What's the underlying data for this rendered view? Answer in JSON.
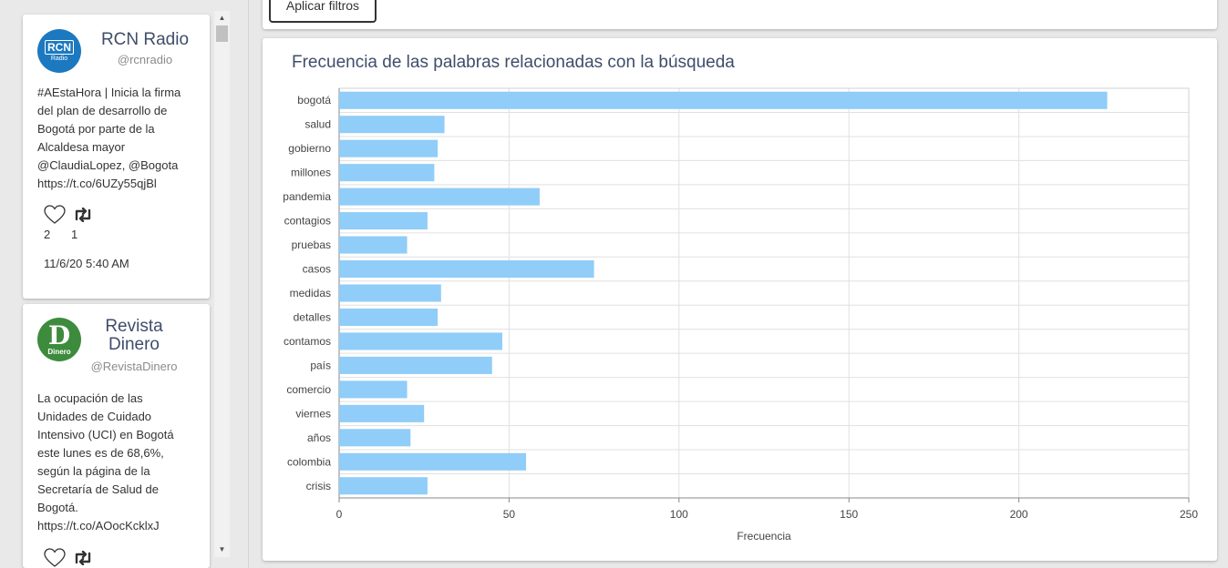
{
  "tweets": [
    {
      "name": "RCN Radio",
      "handle": "@rcnradio",
      "avatar_text": "RCN",
      "avatar_sub": "Radio",
      "text_lines": [
        "#AEstaHora | Inicia la firma",
        "del plan de desarrollo de",
        "Bogotá por parte de la",
        "Alcaldesa mayor",
        "@ClaudiaLopez, @Bogota",
        "https://t.co/6UZy55qjBl"
      ],
      "likes": "2",
      "retweets": "1",
      "date": "11/6/20 5:40 AM",
      "avatar_color": "#1c79c0"
    },
    {
      "name_lines": [
        "Revista",
        "Dinero"
      ],
      "handle": "@RevistaDinero",
      "avatar_text": "D",
      "avatar_sub": "Dinero",
      "text_lines": [
        "La ocupación de las",
        "Unidades de Cuidado",
        "Intensivo (UCI) en Bogotá",
        "este lunes es de 68,6%,",
        "según la página de la",
        "Secretaría de Salud de",
        "Bogotá.",
        "https://t.co/AOocKcklxJ"
      ],
      "avatar_color": "#3d8b3d"
    }
  ],
  "filters": {
    "apply_label": "Aplicar filtros"
  },
  "chart_title": "Frecuencia de las palabras relacionadas con la búsqueda",
  "chart_data": {
    "type": "bar",
    "orientation": "horizontal",
    "categories": [
      "bogotá",
      "salud",
      "gobierno",
      "millones",
      "pandemia",
      "contagios",
      "pruebas",
      "casos",
      "medidas",
      "detalles",
      "contamos",
      "país",
      "comercio",
      "viernes",
      "años",
      "colombia",
      "crisis"
    ],
    "values": [
      226,
      31,
      29,
      28,
      59,
      26,
      20,
      75,
      30,
      29,
      48,
      45,
      20,
      25,
      21,
      55,
      26
    ],
    "xlabel": "Frecuencia",
    "ylabel": "",
    "xlim": [
      0,
      250
    ],
    "xticks": [
      0,
      50,
      100,
      150,
      200,
      250
    ],
    "grid": true,
    "bar_color": "#90cdf8"
  }
}
